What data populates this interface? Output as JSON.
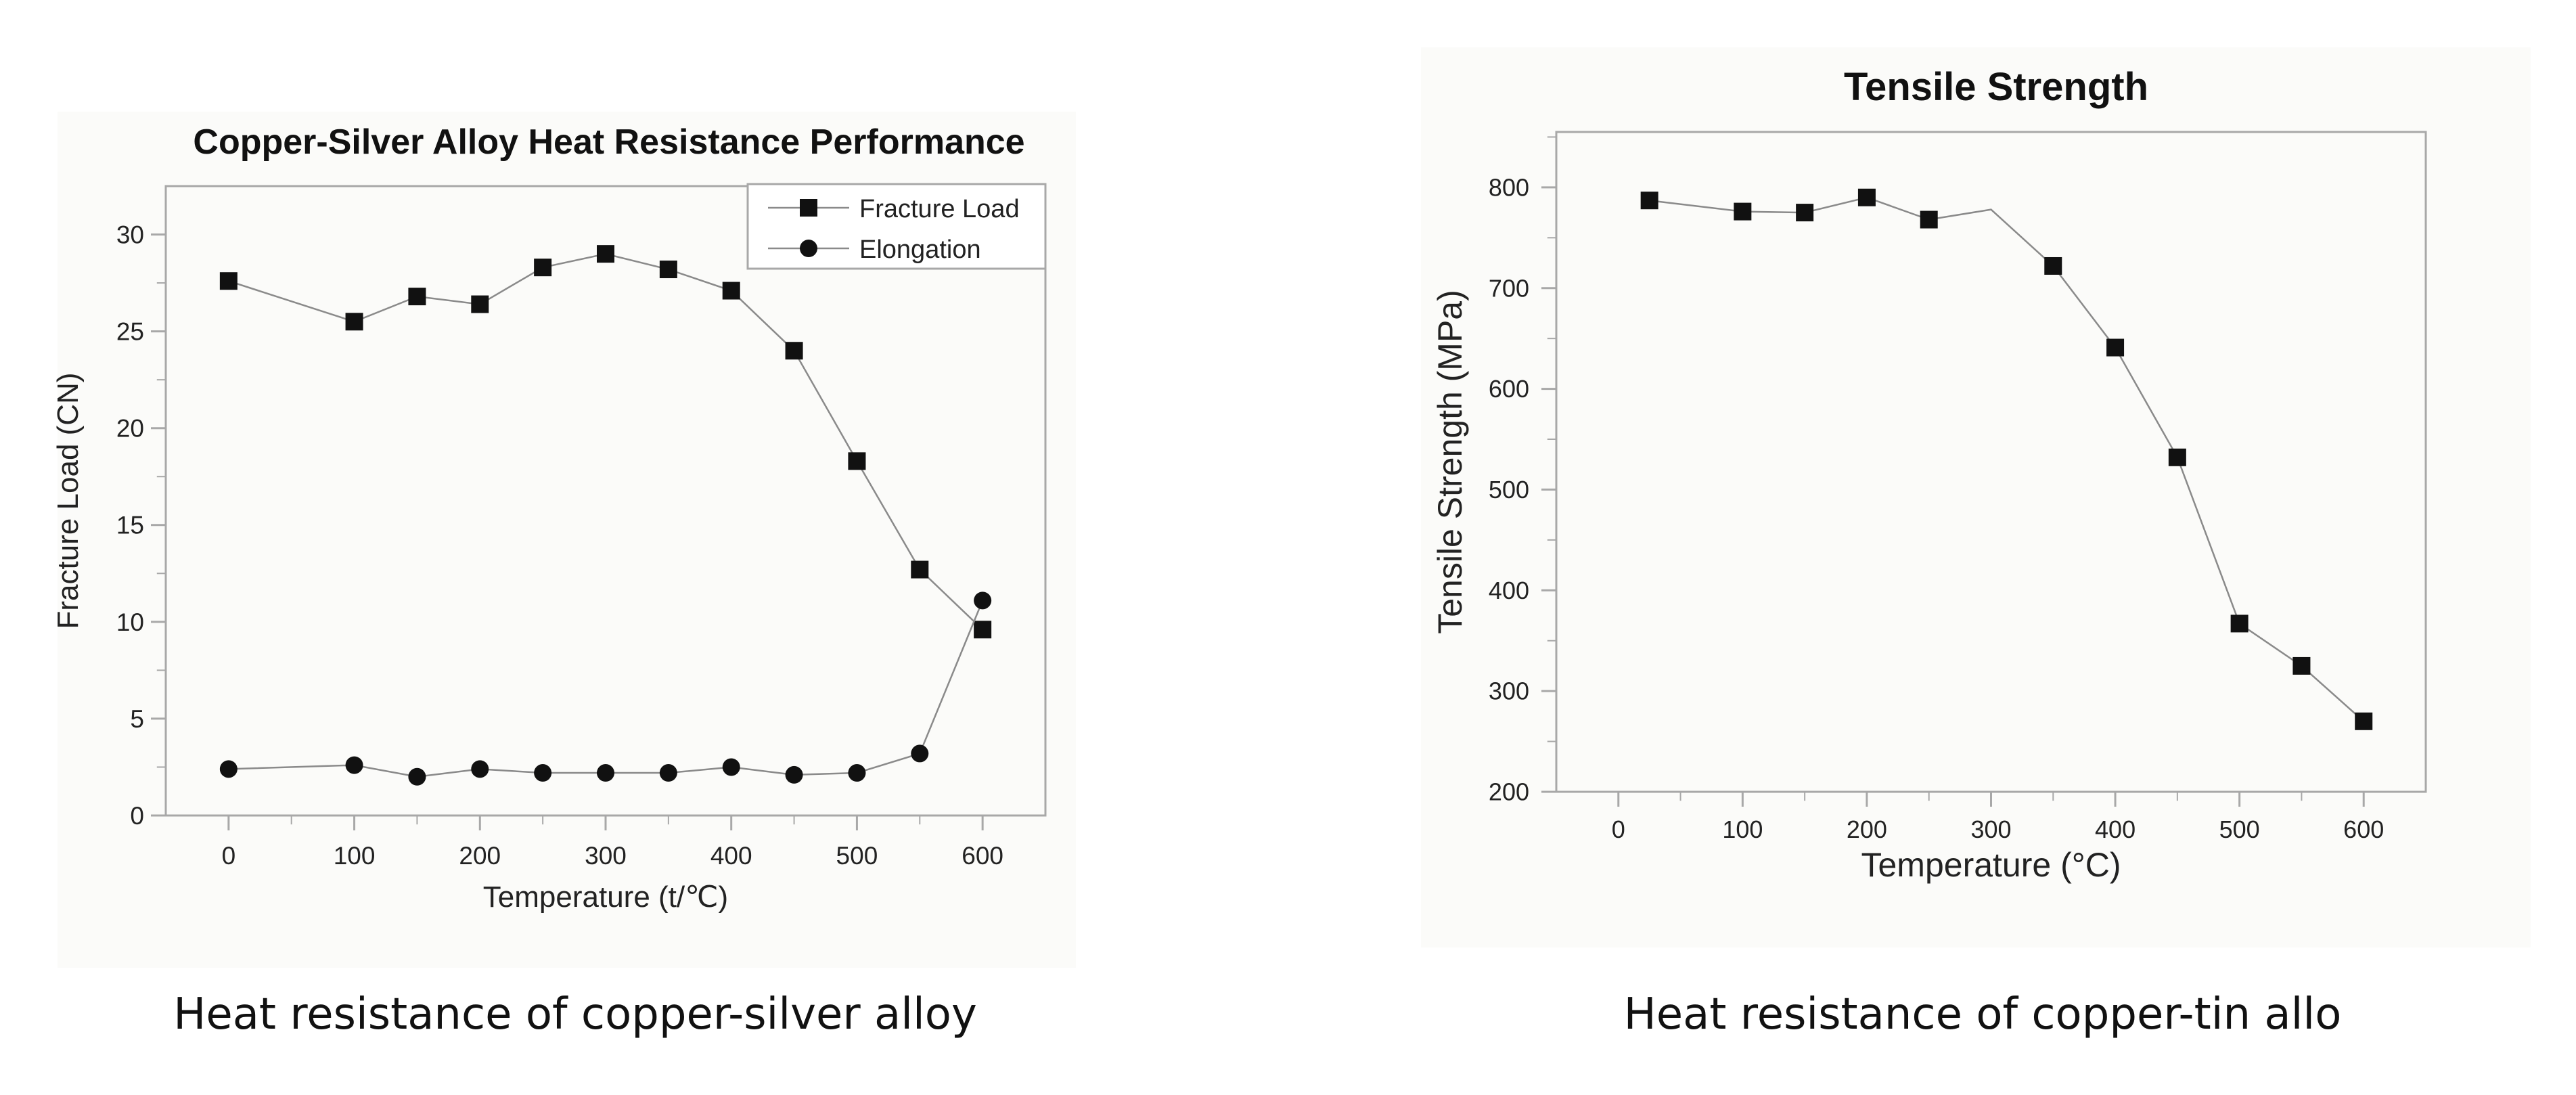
{
  "chart_data": [
    {
      "type": "line",
      "title": "Copper-Silver Alloy Heat Resistance Performance",
      "xlabel": "Temperature (t/℃)",
      "ylabel": "Fracture Load (CN)",
      "xlim": [
        -50,
        650
      ],
      "ylim": [
        0,
        32.5
      ],
      "xticks": [
        0,
        100,
        200,
        300,
        400,
        500,
        600
      ],
      "yticks": [
        0,
        5,
        10,
        15,
        20,
        25,
        30
      ],
      "grid": false,
      "legend_position": "top-right",
      "series": [
        {
          "name": "Fracture Load",
          "marker": "square",
          "x": [
            0,
            100,
            150,
            200,
            250,
            300,
            350,
            400,
            450,
            500,
            550,
            600
          ],
          "y": [
            27.6,
            25.5,
            26.8,
            26.4,
            28.3,
            29.0,
            28.2,
            27.1,
            24.0,
            18.3,
            12.7,
            9.6
          ]
        },
        {
          "name": "Elongation",
          "marker": "circle",
          "x": [
            0,
            100,
            150,
            200,
            250,
            300,
            350,
            400,
            450,
            500,
            550,
            600
          ],
          "y": [
            2.4,
            2.6,
            2.0,
            2.4,
            2.2,
            2.2,
            2.2,
            2.5,
            2.1,
            2.2,
            3.2,
            11.1
          ]
        }
      ]
    },
    {
      "type": "line",
      "title": "Tensile Strength",
      "xlabel": "Temperature (°C)",
      "ylabel": "Tensile Strength (MPa)",
      "xlim": [
        -50,
        650
      ],
      "ylim": [
        200,
        855
      ],
      "xticks": [
        0,
        100,
        200,
        300,
        400,
        500,
        600
      ],
      "yticks": [
        200,
        300,
        400,
        500,
        600,
        700,
        800
      ],
      "grid": false,
      "series": [
        {
          "marker": "square",
          "x": [
            25,
            100,
            150,
            200,
            250,
            300,
            350,
            400,
            450,
            500,
            550,
            600
          ],
          "y": [
            787,
            776,
            775,
            790,
            768,
            778,
            722,
            641,
            532,
            367,
            325,
            270
          ],
          "marker_shown": [
            true,
            true,
            true,
            true,
            true,
            false,
            true,
            true,
            true,
            true,
            true,
            true
          ]
        }
      ]
    }
  ],
  "captions": {
    "left": "Heat resistance of copper-silver alloy",
    "right": "Heat resistance of copper-tin allo"
  },
  "colors": {
    "marker": "#111111",
    "line": "#8a8a8a",
    "axis": "#a8a8a8",
    "text": "#222222"
  }
}
